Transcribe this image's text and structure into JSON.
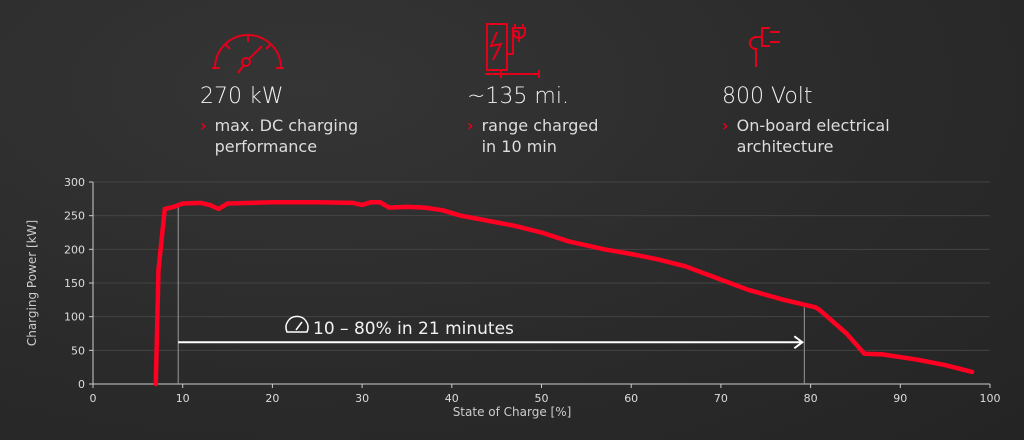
{
  "features": [
    {
      "icon": "speedometer-icon",
      "value": "270 kW",
      "desc": [
        "max. DC charging",
        "performance"
      ]
    },
    {
      "icon": "charging-station-icon",
      "value": "~135 mi.",
      "desc": [
        "range charged",
        "in 10 min"
      ]
    },
    {
      "icon": "plug-icon",
      "value": "800 Volt",
      "desc": [
        "On-board electrical",
        "architecture"
      ]
    }
  ],
  "colors": {
    "accent": "#e3001b",
    "curve": "#ff0022"
  },
  "chart_data": {
    "type": "line",
    "xlabel": "State of Charge [%]",
    "ylabel": "Charging Power [kW]",
    "xlim": [
      0,
      100
    ],
    "ylim": [
      0,
      300
    ],
    "xticks": [
      0,
      10,
      20,
      30,
      40,
      50,
      60,
      70,
      80,
      90,
      100
    ],
    "yticks": [
      0,
      50,
      100,
      150,
      200,
      250,
      300
    ],
    "grid": true,
    "series": [
      {
        "name": "Charging Power",
        "x": [
          7,
          7.3,
          8,
          9,
          10,
          12,
          13,
          14,
          15,
          20,
          25,
          29,
          30,
          31,
          32,
          33,
          35,
          37,
          39,
          41,
          43,
          45,
          47,
          50,
          53,
          57,
          60,
          63,
          66,
          70,
          73,
          77,
          80.5,
          81,
          84,
          86,
          88,
          92,
          95,
          98
        ],
        "y": [
          0,
          170,
          260,
          263,
          268,
          269,
          266,
          260,
          268,
          270,
          270,
          269,
          266,
          270,
          270,
          262,
          263,
          262,
          258,
          250,
          245,
          240,
          235,
          225,
          212,
          200,
          193,
          185,
          175,
          155,
          140,
          125,
          114,
          110,
          75,
          45,
          44,
          36,
          28,
          18
        ]
      }
    ],
    "annotation": {
      "text": "10 – 80% in 21 minutes",
      "from": 9.5,
      "to": 79.3,
      "y": 62
    }
  }
}
